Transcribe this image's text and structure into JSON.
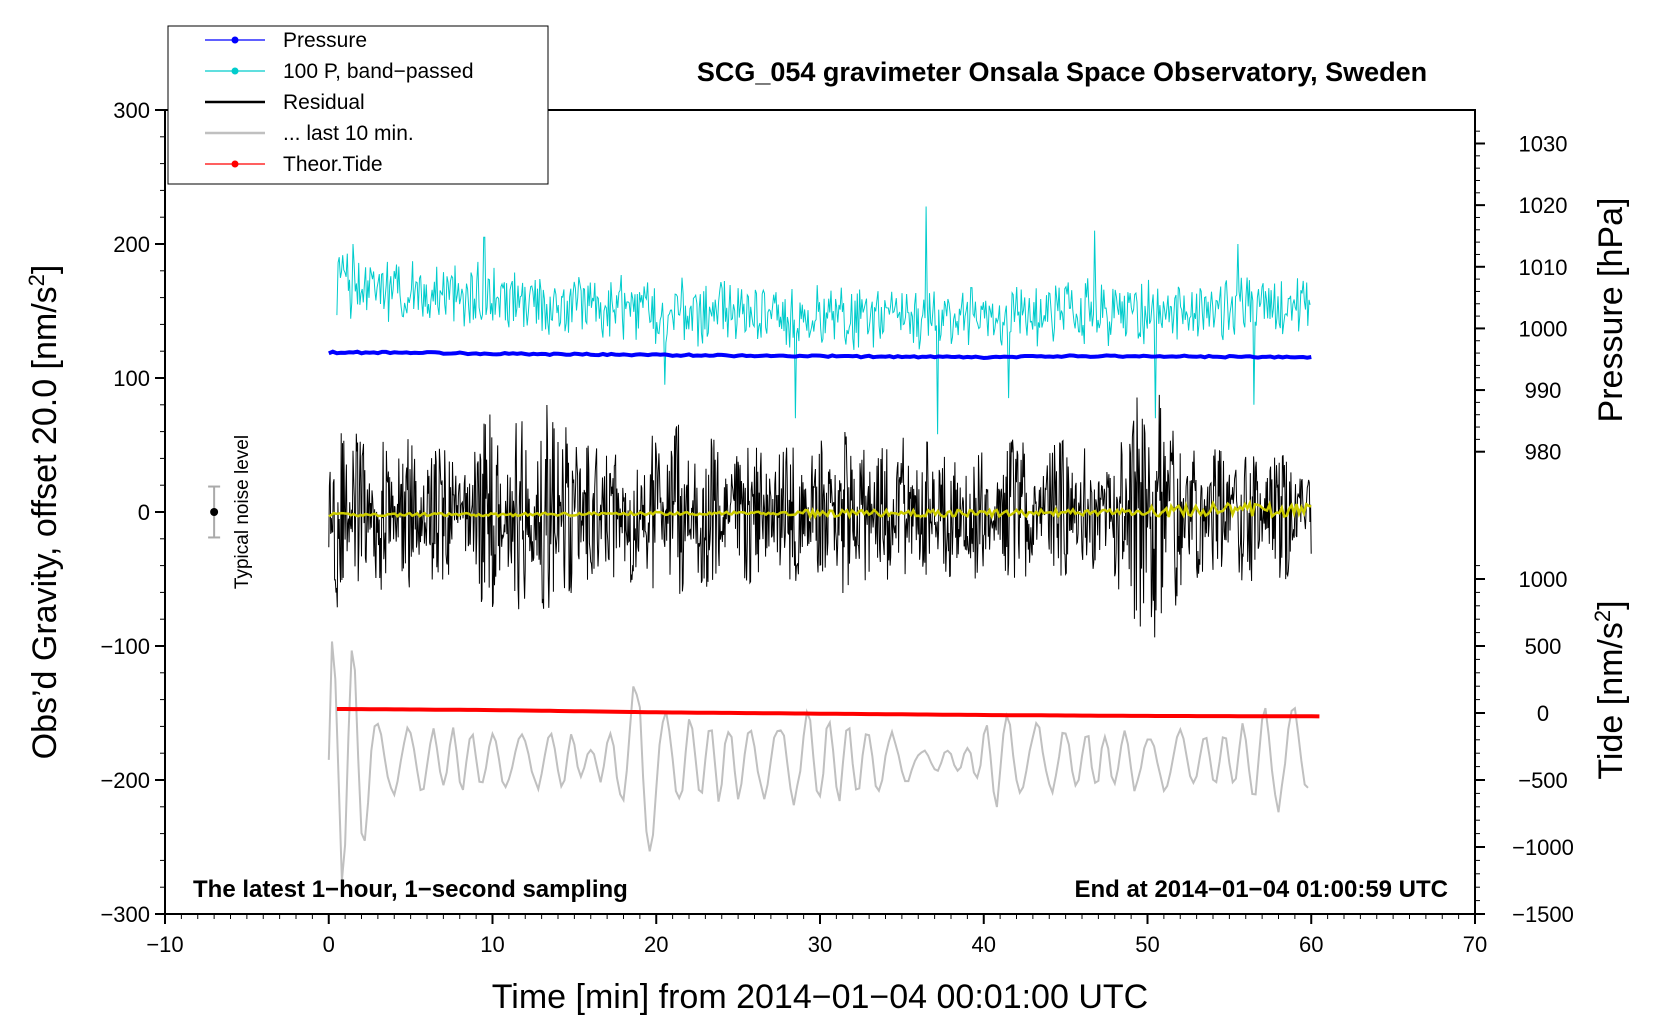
{
  "chart_data": {
    "type": "line",
    "title": "SCG_054 gravimeter Onsala Space Observatory, Sweden",
    "xlabel": "Time [min] from 2014−01−04 00:01:00 UTC",
    "ylabel_left_main": "Obs’d Gravity, offset 20.0 [nm/s",
    "ylabel_left_sup": "2",
    "ylabel_left_end": "]",
    "ylabel_right_pressure": "Pressure [hPa]",
    "ylabel_right_tide_main": "Tide [nm/s",
    "ylabel_right_tide_sup": "2",
    "ylabel_right_tide_end": "]",
    "note_left": "The latest 1−hour, 1−second sampling",
    "note_right": "End at 2014−01−04 01:00:59 UTC",
    "noise_label": "Typical noise level",
    "xlim": [
      -10,
      70
    ],
    "ylim_left": [
      -300,
      300
    ],
    "x_ticks": [
      "−10",
      "0",
      "10",
      "20",
      "30",
      "40",
      "50",
      "60",
      "70"
    ],
    "y_ticks_left": [
      "−300",
      "−200",
      "−100",
      "0",
      "100",
      "200",
      "300"
    ],
    "pressure_axis": {
      "ticks": [
        "980",
        "990",
        "1000",
        "1010",
        "1020",
        "1030"
      ],
      "tick_values": [
        980,
        990,
        1000,
        1010,
        1020,
        1030
      ],
      "ref_value": 980,
      "ref_gravity": 45,
      "gravity_per_unit": 4.6
    },
    "tide_axis": {
      "ticks": [
        "−1500",
        "−1000",
        "−500",
        "0",
        "500",
        "1000"
      ],
      "tick_values": [
        -1500,
        -1000,
        -500,
        0,
        500,
        1000
      ],
      "ref_value": 0,
      "ref_gravity": -150,
      "gravity_per_unit": 0.1
    },
    "noise_bar": {
      "x": -7,
      "center": 0,
      "half_range": 19
    },
    "legend": [
      {
        "label": "Pressure",
        "color": "#0000ff",
        "style": "line-dot"
      },
      {
        "label": "100 P, band−passed",
        "color": "#00cccc",
        "style": "line-dot"
      },
      {
        "label": "Residual",
        "color": "#000000",
        "style": "line"
      },
      {
        "label": "... last 10 min.",
        "color": "#c0c0c0",
        "style": "line"
      },
      {
        "label": "Theor.Tide",
        "color": "#ff0000",
        "style": "line-dot"
      }
    ],
    "series": [
      {
        "name": "Pressure",
        "color": "#0000ff",
        "axis": "pressure",
        "x": [
          0,
          5,
          10,
          15,
          20,
          25,
          30,
          35,
          40,
          45,
          50,
          55,
          60
        ],
        "y": [
          996.1,
          996.1,
          995.9,
          995.8,
          995.7,
          995.6,
          995.5,
          995.4,
          995.3,
          995.5,
          995.5,
          995.4,
          995.3
        ]
      },
      {
        "name": "100 P, band-passed",
        "color": "#00cccc",
        "axis": "left",
        "x": [
          0,
          10,
          20,
          30,
          40,
          50,
          60
        ],
        "y": [
          170,
          160,
          150,
          145,
          145,
          150,
          155
        ],
        "amplitude": 22,
        "spikes": [
          {
            "x": 1.5,
            "y": 200
          },
          {
            "x": 9.5,
            "y": 205
          },
          {
            "x": 20.5,
            "y": 95
          },
          {
            "x": 28.5,
            "y": 70
          },
          {
            "x": 36.5,
            "y": 228
          },
          {
            "x": 37.2,
            "y": 58
          },
          {
            "x": 41.5,
            "y": 85
          },
          {
            "x": 46.8,
            "y": 210
          },
          {
            "x": 50.5,
            "y": 70
          },
          {
            "x": 55.5,
            "y": 200
          },
          {
            "x": 56.5,
            "y": 80
          }
        ]
      },
      {
        "name": "Residual",
        "color": "#000000",
        "axis": "left",
        "x": [
          0,
          5,
          10,
          15,
          20,
          25,
          30,
          35,
          40,
          45,
          50,
          55,
          60
        ],
        "y": [
          0,
          0,
          0,
          0,
          0,
          0,
          0,
          0,
          0,
          0,
          0,
          0,
          0
        ],
        "envelope": [
          {
            "x": 0,
            "amp": 75
          },
          {
            "x": 2,
            "amp": 65
          },
          {
            "x": 4,
            "amp": 55
          },
          {
            "x": 6,
            "amp": 65
          },
          {
            "x": 8,
            "amp": 50
          },
          {
            "x": 10,
            "amp": 85
          },
          {
            "x": 12,
            "amp": 75
          },
          {
            "x": 14,
            "amp": 95
          },
          {
            "x": 16,
            "amp": 60
          },
          {
            "x": 18,
            "amp": 55
          },
          {
            "x": 20,
            "amp": 65
          },
          {
            "x": 22,
            "amp": 70
          },
          {
            "x": 24,
            "amp": 60
          },
          {
            "x": 26,
            "amp": 55
          },
          {
            "x": 28,
            "amp": 60
          },
          {
            "x": 30,
            "amp": 55
          },
          {
            "x": 32,
            "amp": 70
          },
          {
            "x": 34,
            "amp": 60
          },
          {
            "x": 36,
            "amp": 55
          },
          {
            "x": 38,
            "amp": 60
          },
          {
            "x": 40,
            "amp": 50
          },
          {
            "x": 42,
            "amp": 60
          },
          {
            "x": 44,
            "amp": 55
          },
          {
            "x": 46,
            "amp": 60
          },
          {
            "x": 48,
            "amp": 55
          },
          {
            "x": 50,
            "amp": 110
          },
          {
            "x": 52,
            "amp": 65
          },
          {
            "x": 54,
            "amp": 55
          },
          {
            "x": 56,
            "amp": 60
          },
          {
            "x": 58,
            "amp": 50
          },
          {
            "x": 60,
            "amp": 55
          }
        ]
      },
      {
        "name": "Residual smoothed",
        "color": "#cccc00",
        "axis": "left",
        "x": [
          0,
          10,
          20,
          30,
          40,
          50,
          55,
          60
        ],
        "y": [
          -2,
          -2,
          -1,
          -1,
          -1,
          0,
          2,
          1
        ]
      },
      {
        "name": "... last 10 min.",
        "color": "#c0c0c0",
        "axis": "left",
        "x": [
          0,
          60
        ],
        "y": [
          -185,
          -185
        ],
        "envelope": [
          {
            "x": 0,
            "amp": 100
          },
          {
            "x": 1,
            "amp": 105
          },
          {
            "x": 2,
            "amp": 80
          },
          {
            "x": 3,
            "amp": 30
          },
          {
            "x": 5,
            "amp": 25
          },
          {
            "x": 10,
            "amp": 25
          },
          {
            "x": 15,
            "amp": 22
          },
          {
            "x": 16,
            "amp": 8
          },
          {
            "x": 17,
            "amp": 25
          },
          {
            "x": 18,
            "amp": 40
          },
          {
            "x": 19,
            "amp": 85
          },
          {
            "x": 21,
            "amp": 40
          },
          {
            "x": 25,
            "amp": 30
          },
          {
            "x": 30,
            "amp": 38
          },
          {
            "x": 35,
            "amp": 22
          },
          {
            "x": 36,
            "amp": 8
          },
          {
            "x": 39,
            "amp": 12
          },
          {
            "x": 41,
            "amp": 40
          },
          {
            "x": 45,
            "amp": 25
          },
          {
            "x": 50,
            "amp": 25
          },
          {
            "x": 55,
            "amp": 20
          },
          {
            "x": 57,
            "amp": 40
          },
          {
            "x": 59,
            "amp": 45
          },
          {
            "x": 60,
            "amp": 20
          }
        ]
      },
      {
        "name": "Theor.Tide",
        "color": "#ff0000",
        "axis": "tide",
        "x": [
          0.5,
          10,
          20,
          30,
          40,
          50,
          60.5
        ],
        "y": [
          30,
          22,
          5,
          -5,
          -15,
          -22,
          -25
        ]
      }
    ]
  }
}
